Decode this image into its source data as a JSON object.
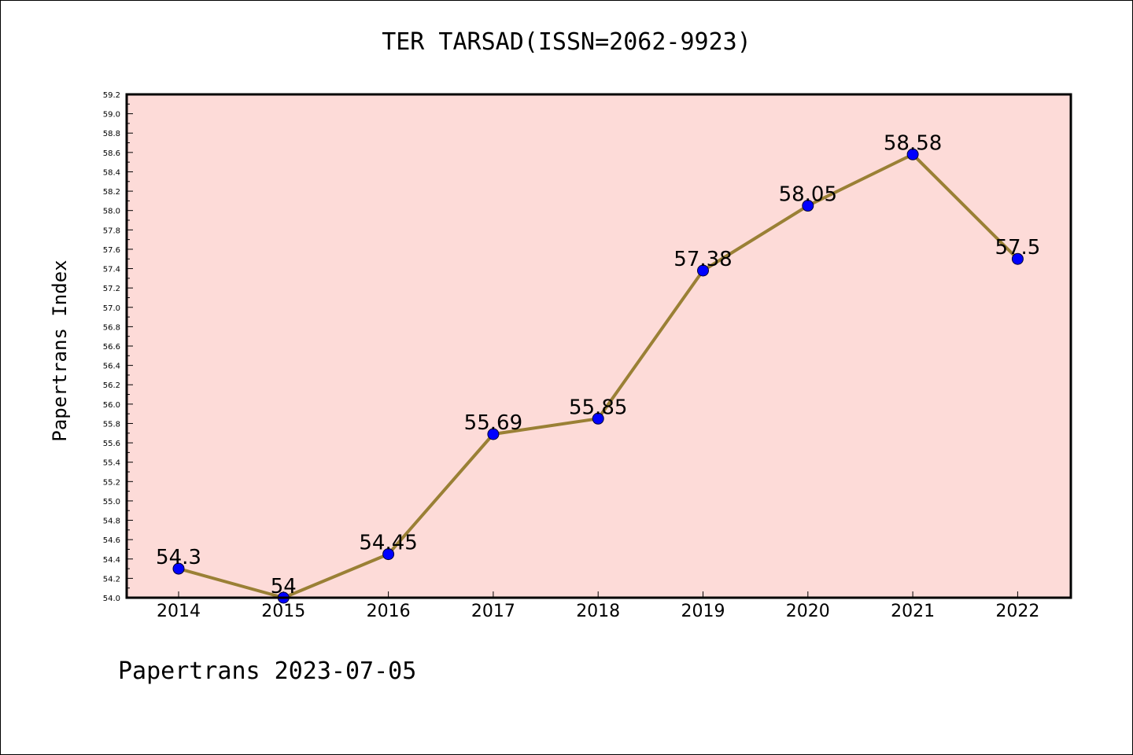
{
  "chart_data": {
    "type": "line",
    "title": "TER TARSAD(ISSN=2062-9923)",
    "ylabel": "Papertrans Index",
    "footer": "Papertrans 2023-07-05",
    "x": [
      "2014",
      "2015",
      "2016",
      "2017",
      "2018",
      "2019",
      "2020",
      "2021",
      "2022"
    ],
    "series": [
      {
        "values": [
          54.3,
          54,
          54.45,
          55.69,
          55.85,
          57.38,
          58.05,
          58.58,
          57.5
        ],
        "labels": [
          "54.3",
          "54",
          "54.45",
          "55.69",
          "55.85",
          "57.38",
          "58.05",
          "58.58",
          "57.5"
        ]
      }
    ],
    "ylim": [
      54.0,
      59.2
    ],
    "yticks": [
      "54.0",
      "54.2",
      "54.4",
      "54.6",
      "54.8",
      "55.0",
      "55.2",
      "55.4",
      "55.6",
      "55.8",
      "56.0",
      "56.2",
      "56.4",
      "56.6",
      "56.8",
      "57.0",
      "57.2",
      "57.4",
      "57.6",
      "57.8",
      "58.0",
      "58.2",
      "58.4",
      "58.6",
      "58.8",
      "59.0",
      "59.2"
    ],
    "grid": false,
    "colors": {
      "plot_background": "#fddbd8",
      "line": "#9a8035",
      "marker": "#0000ff"
    }
  }
}
